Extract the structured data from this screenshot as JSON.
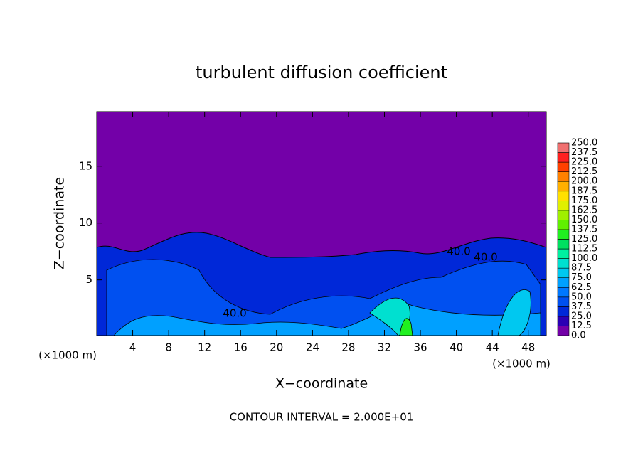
{
  "chart_data": {
    "type": "contour",
    "title": "turbulent diffusion coefficient",
    "x_label": "X−coordinate",
    "y_label": "Z−coordinate",
    "x_unit": "(×1000 m)",
    "x_unit_right": "(×1000 m)",
    "footnote": "CONTOUR INTERVAL = 2.000E+01",
    "xlim": [
      0,
      50
    ],
    "xticks": [
      4,
      8,
      12,
      16,
      20,
      24,
      28,
      32,
      36,
      40,
      44,
      48
    ],
    "ylim": [
      0.1,
      19.8
    ],
    "yticks": [
      5,
      10,
      15
    ],
    "contour_labels": [
      "40.0",
      "40.0",
      "40.0"
    ],
    "colorbar": {
      "levels": [
        {
          "value": 0,
          "label": "0.0"
        },
        {
          "value": 12.5,
          "label": "12.5"
        },
        {
          "value": 25,
          "label": "25.0"
        },
        {
          "value": 37.5,
          "label": "37.5"
        },
        {
          "value": 50,
          "label": "50.0"
        },
        {
          "value": 62.5,
          "label": "62.5"
        },
        {
          "value": 75,
          "label": "75.0"
        },
        {
          "value": 87.5,
          "label": "87.5"
        },
        {
          "value": 100,
          "label": "100.0"
        },
        {
          "value": 112.5,
          "label": "112.5"
        },
        {
          "value": 125,
          "label": "125.0"
        },
        {
          "value": 137.5,
          "label": "137.5"
        },
        {
          "value": 150,
          "label": "150.0"
        },
        {
          "value": 162.5,
          "label": "162.5"
        },
        {
          "value": 175,
          "label": "175.0"
        },
        {
          "value": 187.5,
          "label": "187.5"
        },
        {
          "value": 200,
          "label": "200.0"
        },
        {
          "value": 212.5,
          "label": "212.5"
        },
        {
          "value": 225,
          "label": "225.0"
        },
        {
          "value": 237.5,
          "label": "237.5"
        },
        {
          "value": 250,
          "label": "250.0"
        }
      ],
      "colors": [
        "#7300a8",
        "#2a00b4",
        "#0028d8",
        "#0050f0",
        "#0078ff",
        "#00a0ff",
        "#00c8f0",
        "#00e0d0",
        "#00f0a0",
        "#00e060",
        "#20f020",
        "#60f000",
        "#a0f000",
        "#e0f000",
        "#ffe000",
        "#ffb000",
        "#ff8000",
        "#ff4000",
        "#ff2020",
        "#f07070"
      ]
    }
  }
}
